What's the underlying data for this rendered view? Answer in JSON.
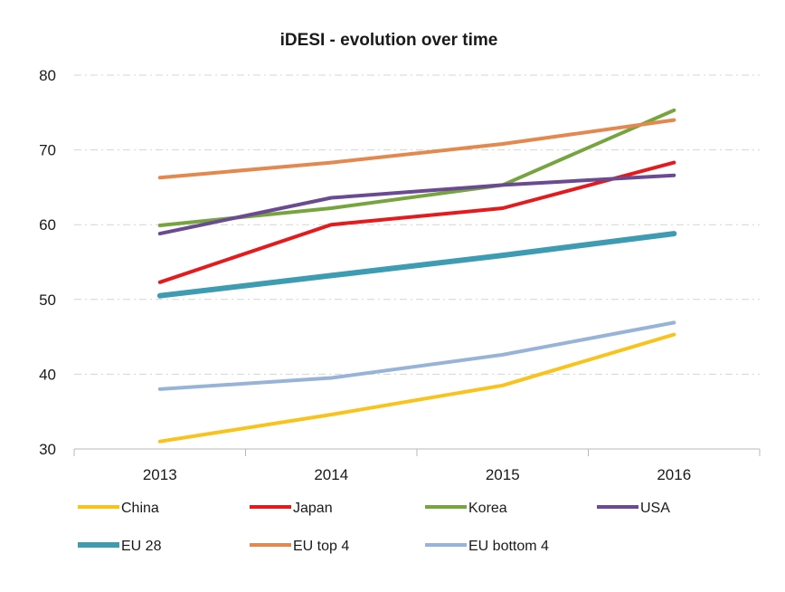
{
  "chart_data": {
    "type": "line",
    "title": "iDESI - evolution over time",
    "xlabel": "",
    "ylabel": "",
    "categories": [
      "2013",
      "2014",
      "2015",
      "2016"
    ],
    "ylim": [
      30,
      80
    ],
    "yticks": [
      "30",
      "40",
      "50",
      "60",
      "70",
      "80"
    ],
    "grid": true,
    "legend_position": "bottom",
    "series": [
      {
        "name": "China",
        "color": "#f7c31c",
        "width": 4,
        "values": [
          31.0,
          34.6,
          38.5,
          45.3
        ]
      },
      {
        "name": "Japan",
        "color": "#e41a1c",
        "width": 4,
        "values": [
          52.3,
          60.0,
          62.2,
          68.3
        ]
      },
      {
        "name": "Korea",
        "color": "#76a53f",
        "width": 4,
        "values": [
          59.9,
          62.2,
          65.3,
          75.3
        ]
      },
      {
        "name": "USA",
        "color": "#6a4a91",
        "width": 4,
        "values": [
          58.8,
          63.6,
          65.3,
          66.6
        ]
      },
      {
        "name": "EU 28",
        "color": "#3d9cb2",
        "width": 6,
        "values": [
          50.5,
          53.2,
          55.9,
          58.8
        ]
      },
      {
        "name": "EU top 4",
        "color": "#e3894f",
        "width": 4,
        "values": [
          66.3,
          68.3,
          70.8,
          74.0
        ]
      },
      {
        "name": "EU bottom 4",
        "color": "#97b4d8",
        "width": 4,
        "values": [
          38.0,
          39.5,
          42.6,
          46.9
        ]
      }
    ]
  }
}
